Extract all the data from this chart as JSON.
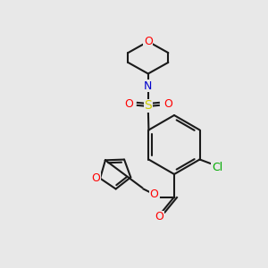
{
  "bg_color": "#e8e8e8",
  "bond_color": "#1a1a1a",
  "colors": {
    "O": "#ff0000",
    "N": "#0000cc",
    "S": "#cccc00",
    "Cl": "#00aa00",
    "C": "#1a1a1a"
  },
  "font_size": 9,
  "lw": 1.5
}
